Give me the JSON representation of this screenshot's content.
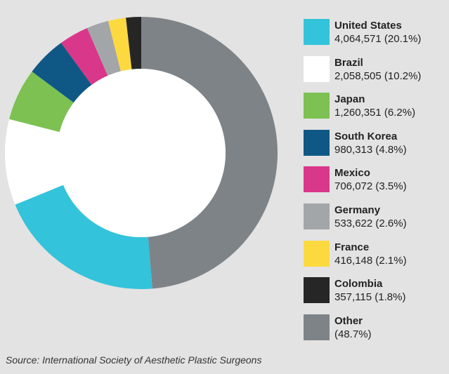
{
  "chart_data": {
    "type": "pie",
    "variant": "donut",
    "categories": [
      "United States",
      "Brazil",
      "Japan",
      "South Korea",
      "Mexico",
      "Germany",
      "France",
      "Colombia",
      "Other"
    ],
    "values": [
      4064571,
      2058505,
      1260351,
      980313,
      706072,
      533622,
      416148,
      357115,
      null
    ],
    "percent_labels": [
      "20.1%",
      "10.2%",
      "6.2%",
      "4.8%",
      "3.5%",
      "2.6%",
      "2.1%",
      "1.8%",
      "48.7%"
    ],
    "legend_values": [
      "4,064,571 (20.1%)",
      "2,058,505 (10.2%)",
      "1,260,351 (6.2%)",
      "980,313 (4.8%)",
      "706,072 (3.5%)",
      "533,622 (2.6%)",
      "416,148 (2.1%)",
      "357,115 (1.8%)",
      "(48.7%)"
    ],
    "percentages": [
      20.1,
      10.2,
      6.2,
      4.8,
      3.5,
      2.6,
      2.1,
      1.8,
      48.7
    ],
    "colors": [
      "#33c3da",
      "#ffffff",
      "#7cc152",
      "#0f5885",
      "#d93789",
      "#a3a6a9",
      "#fdd940",
      "#262626",
      "#7e8387"
    ],
    "legend_placement": "right",
    "title": "",
    "source": "Source: International Society of Aesthetic Plastic Surgeons"
  }
}
